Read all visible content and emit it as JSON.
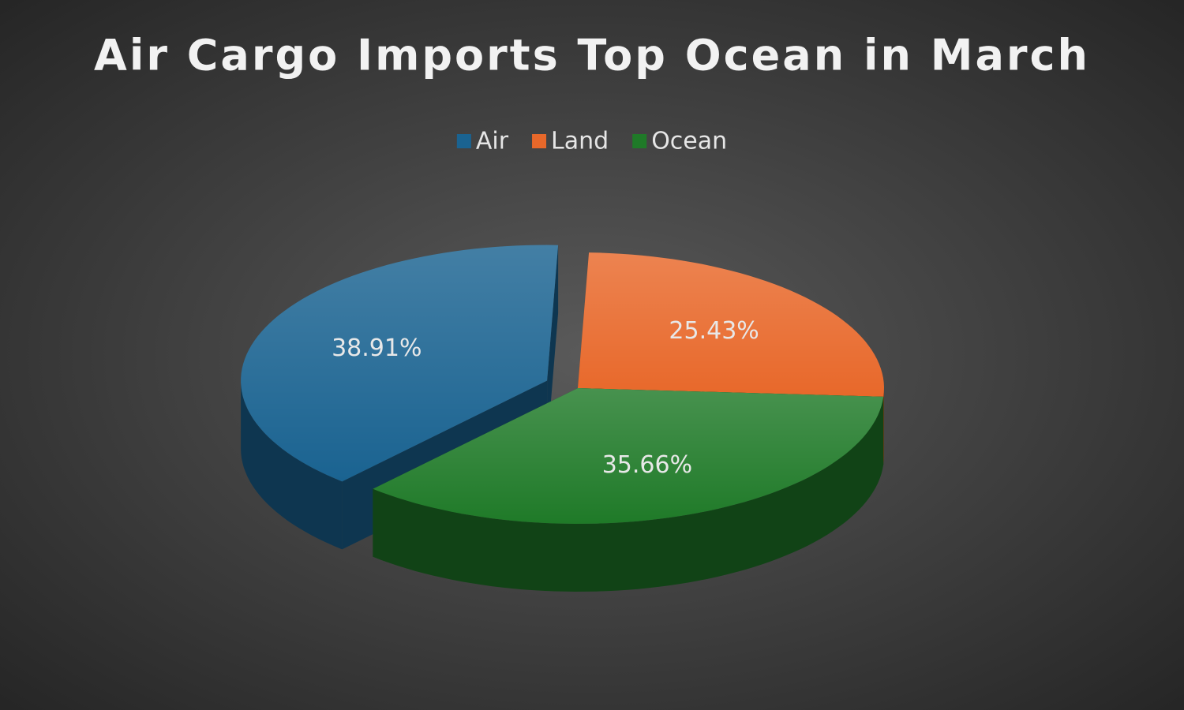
{
  "chart_data": {
    "type": "pie",
    "title": "Air Cargo Imports Top Ocean in March",
    "categories": [
      "Air",
      "Land",
      "Ocean"
    ],
    "values": [
      38.91,
      25.43,
      35.66
    ],
    "value_labels": [
      "38.91%",
      "25.43%",
      "35.66%"
    ],
    "colors": [
      "#1a6391",
      "#e8682a",
      "#1f7a28"
    ],
    "legend": "top"
  }
}
